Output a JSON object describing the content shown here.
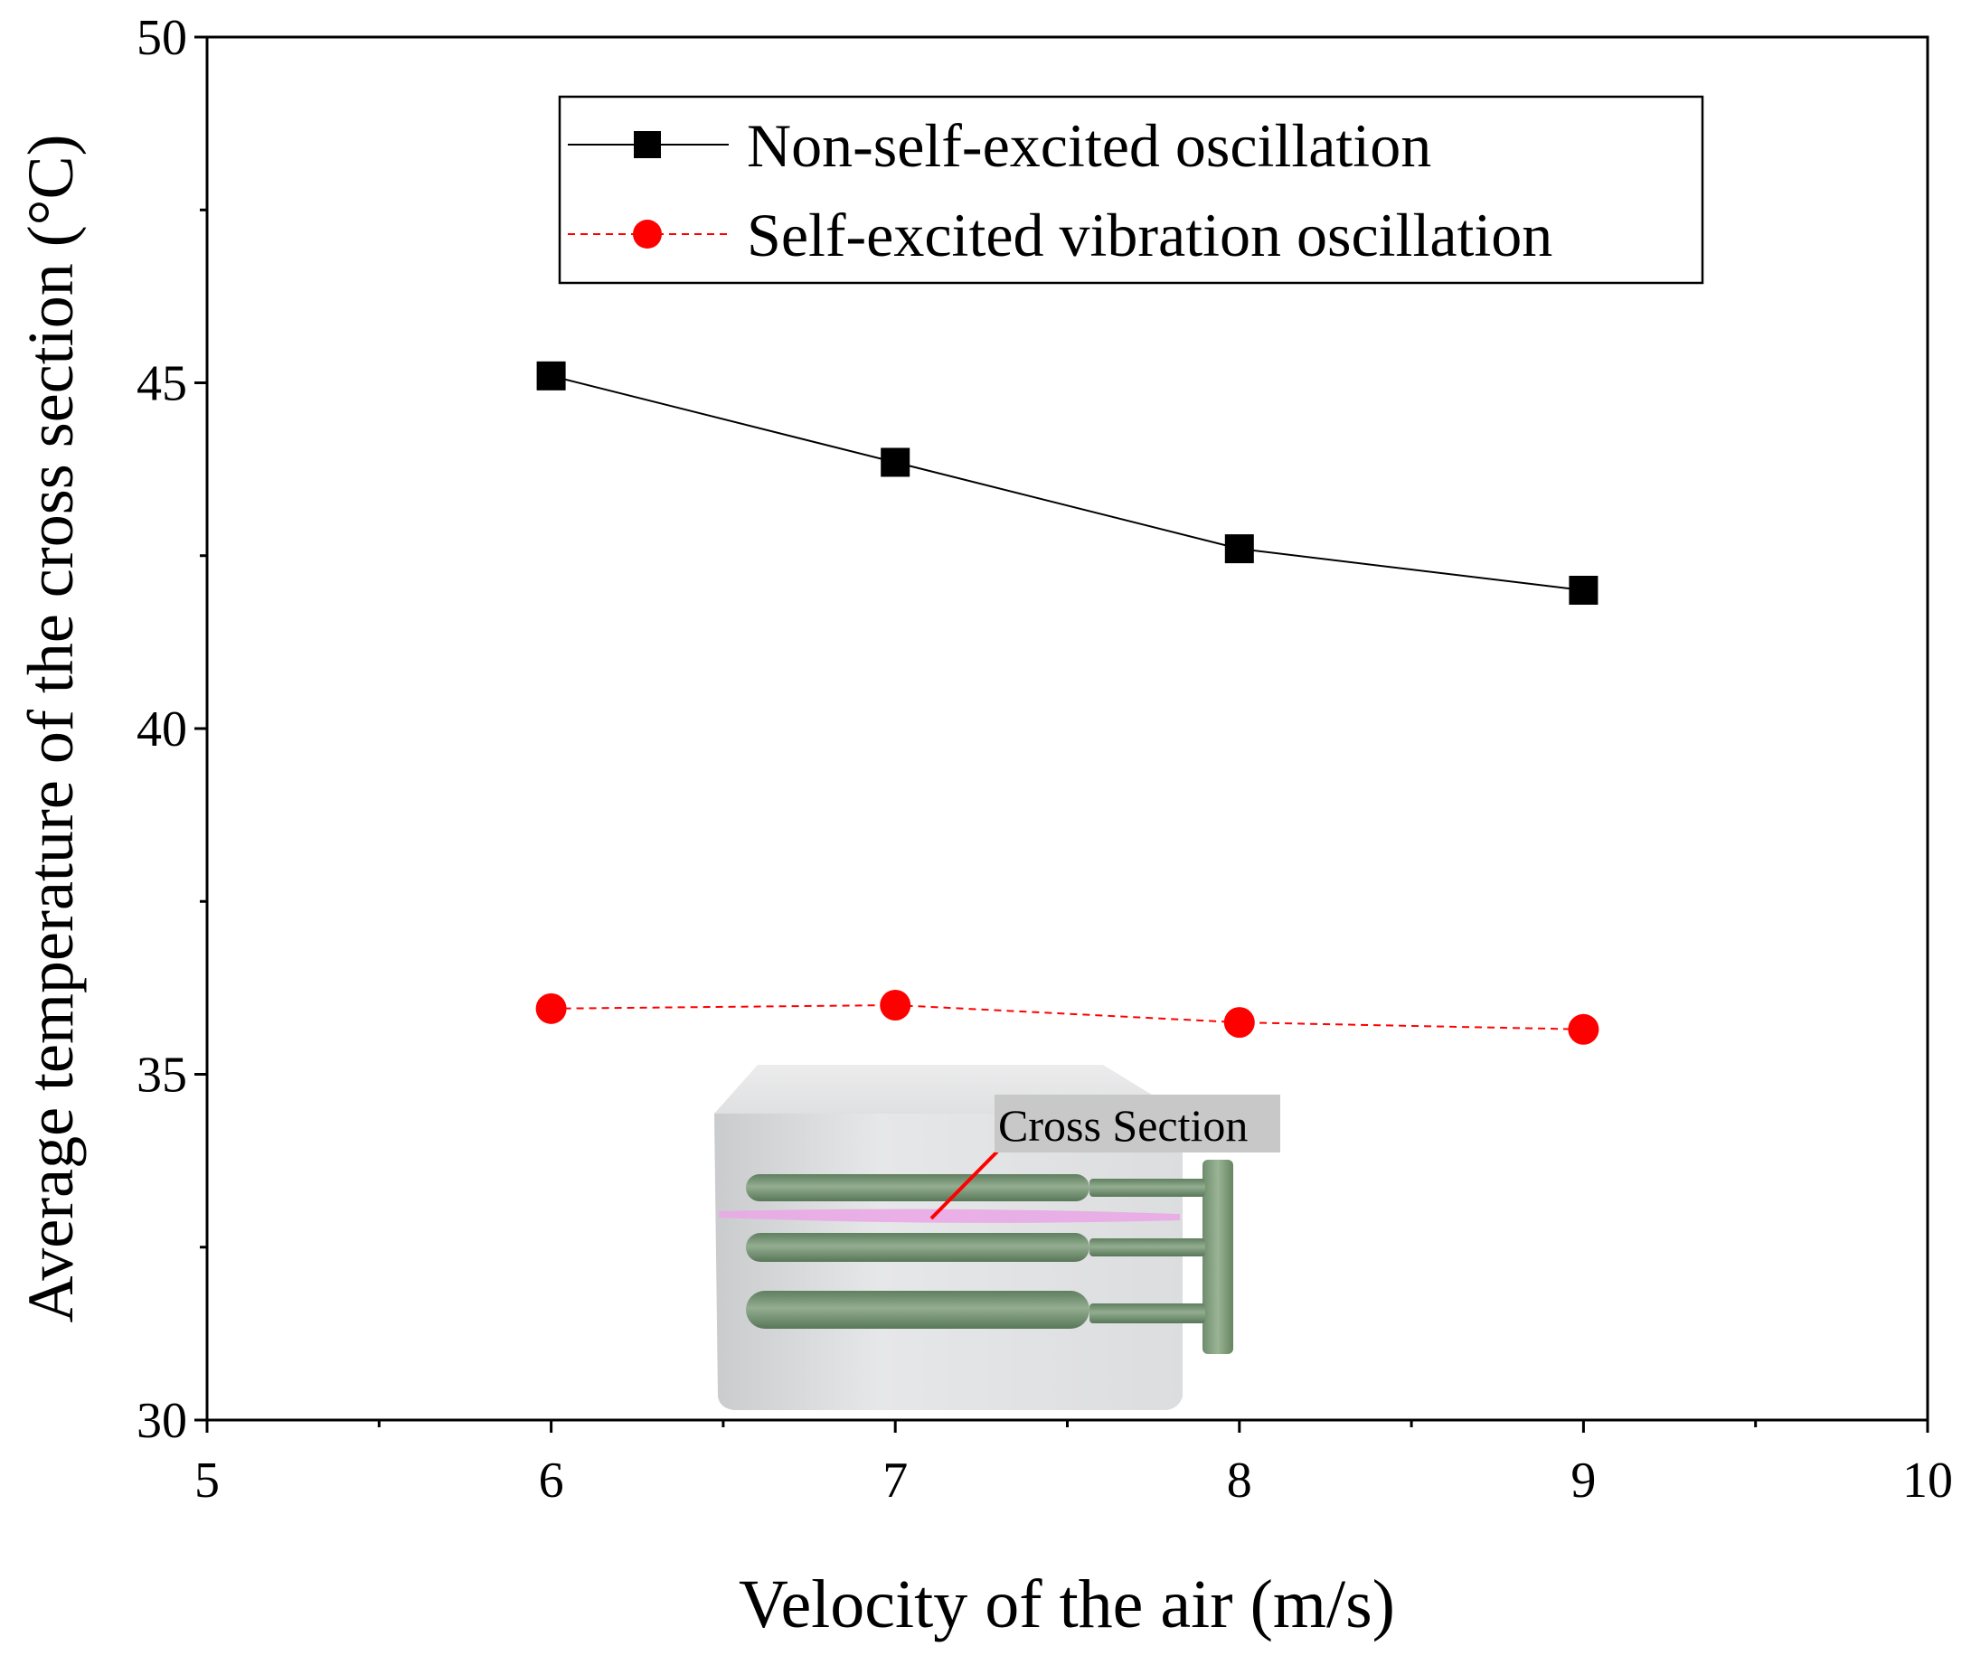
{
  "chart_data": {
    "type": "line",
    "xlabel": "Velocity of the air (m/s)",
    "ylabel": "Average temperature of the cross section (°C)",
    "xlim": [
      5,
      10
    ],
    "ylim": [
      30,
      50
    ],
    "x_ticks": [
      5,
      6,
      7,
      8,
      9,
      10
    ],
    "y_ticks": [
      30,
      35,
      40,
      45,
      50
    ],
    "grid": false,
    "legend_position": "top-right",
    "x": [
      6,
      7,
      8,
      9
    ],
    "series": [
      {
        "name": "Non-self-excited oscillation",
        "values": [
          45.1,
          43.85,
          42.6,
          42.0
        ],
        "color": "#000000",
        "marker": "square",
        "line_style": "solid"
      },
      {
        "name": "Self-excited vibration oscillation",
        "values": [
          35.95,
          36.0,
          35.75,
          35.65
        ],
        "color": "#ff0000",
        "marker": "circle",
        "line_style": "dashed"
      }
    ],
    "annotations": [
      {
        "text": "Cross Section"
      }
    ]
  }
}
